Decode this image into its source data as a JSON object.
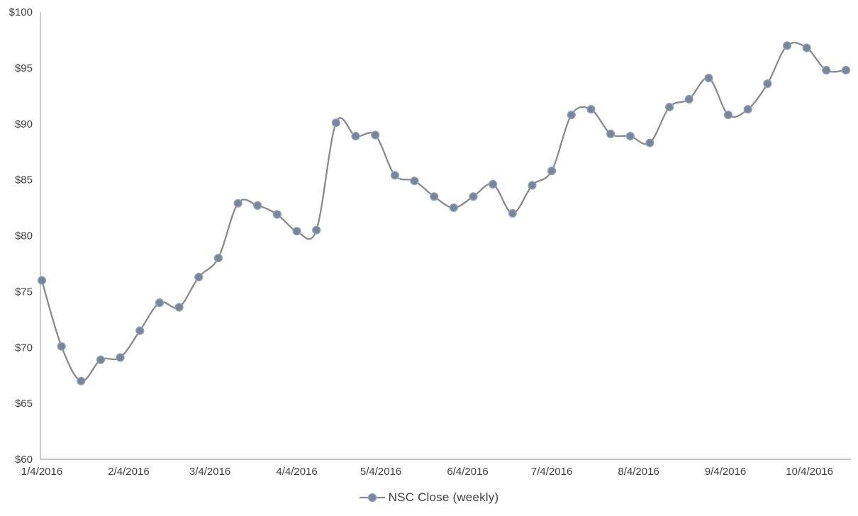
{
  "chart_data": {
    "type": "line",
    "legend": "NSC Close (weekly)",
    "legend_position": "bottom",
    "grid": "off",
    "smoothed_line": true,
    "x": [
      "1/4/2016",
      "1/11/2016",
      "1/18/2016",
      "1/25/2016",
      "2/1/2016",
      "2/8/2016",
      "2/15/2016",
      "2/22/2016",
      "2/29/2016",
      "3/7/2016",
      "3/14/2016",
      "3/21/2016",
      "3/28/2016",
      "4/4/2016",
      "4/11/2016",
      "4/18/2016",
      "4/25/2016",
      "5/2/2016",
      "5/9/2016",
      "5/16/2016",
      "5/23/2016",
      "5/30/2016",
      "6/6/2016",
      "6/13/2016",
      "6/20/2016",
      "6/27/2016",
      "7/4/2016",
      "7/11/2016",
      "7/18/2016",
      "7/25/2016",
      "8/1/2016",
      "8/8/2016",
      "8/15/2016",
      "8/22/2016",
      "8/29/2016",
      "9/5/2016",
      "9/12/2016",
      "9/19/2016",
      "9/26/2016",
      "10/3/2016",
      "10/10/2016",
      "10/17/2016"
    ],
    "series": [
      {
        "name": "NSC Close (weekly)",
        "values": [
          76.0,
          70.1,
          67.0,
          68.9,
          69.1,
          71.5,
          74.0,
          73.6,
          76.3,
          78.0,
          82.9,
          82.7,
          81.9,
          80.4,
          80.5,
          90.1,
          88.9,
          89.0,
          85.4,
          84.9,
          83.5,
          82.5,
          83.5,
          84.6,
          82.0,
          84.5,
          85.8,
          90.8,
          91.3,
          89.1,
          88.9,
          88.3,
          91.5,
          92.2,
          94.1,
          90.8,
          91.3,
          93.6,
          97.0,
          96.8,
          94.8,
          94.8
        ]
      }
    ],
    "xlabel": "",
    "ylabel": "",
    "ylim": [
      60,
      100
    ],
    "y_ticks": [
      60,
      65,
      70,
      75,
      80,
      85,
      90,
      95,
      100
    ],
    "y_tick_labels": [
      "$60",
      "$65",
      "$70",
      "$75",
      "$80",
      "$85",
      "$90",
      "$95",
      "$100"
    ],
    "x_tick_labels": [
      "1/4/2016",
      "2/4/2016",
      "3/4/2016",
      "4/4/2016",
      "5/4/2016",
      "6/4/2016",
      "7/4/2016",
      "8/4/2016",
      "9/4/2016",
      "10/4/2016"
    ],
    "colors": {
      "line": "#8a8a8a",
      "marker_fill": "#7b8595",
      "marker_stroke": "#8ba3c7",
      "axis": "#a6a6a6",
      "label_text": "#404040"
    }
  }
}
